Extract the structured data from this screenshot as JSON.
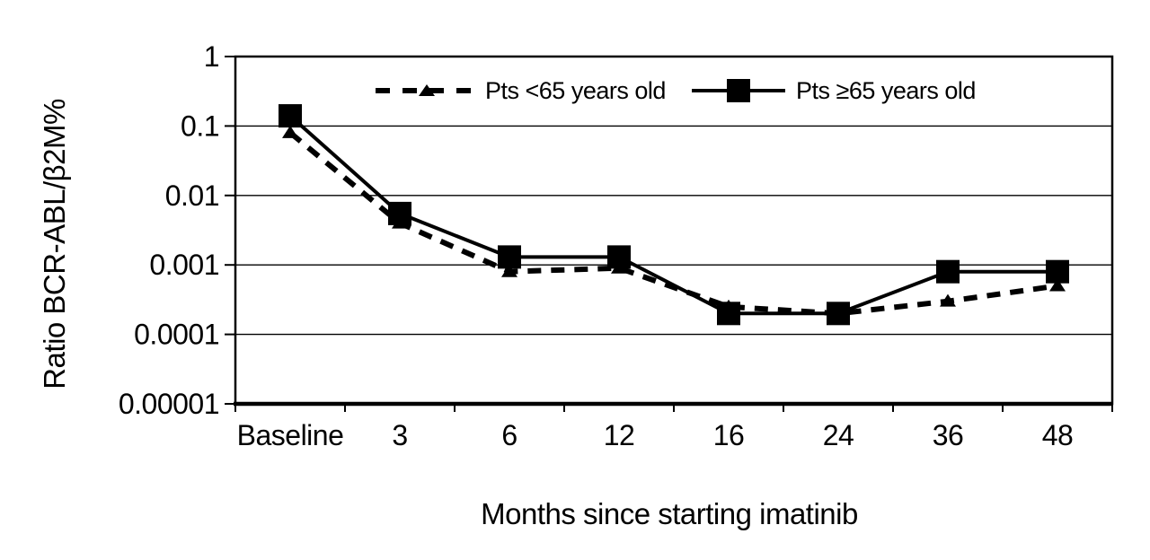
{
  "colors": {
    "foreground": "#000000",
    "background": "#ffffff"
  },
  "chart_data": {
    "type": "line",
    "title": "",
    "xlabel": "Months since starting imatinib",
    "ylabel": "Ratio BCR-ABL/β2M%",
    "categories": [
      "Baseline",
      "3",
      "6",
      "12",
      "16",
      "24",
      "36",
      "48"
    ],
    "y_scale": "log",
    "ylim": [
      1e-05,
      1
    ],
    "y_ticks": [
      "1",
      "0.1",
      "0.01",
      "0.001",
      "0.0001",
      "0.00001"
    ],
    "y_tick_values": [
      1,
      0.1,
      0.01,
      0.001,
      0.0001,
      1e-05
    ],
    "grid": "horizontal-gridlines-per-decade",
    "legend_position": "top-inside",
    "series": [
      {
        "name": "Pts <65 years old",
        "line_style": "dashed",
        "marker": "triangle",
        "color": "#000000",
        "values": [
          0.08,
          0.004,
          0.0008,
          0.0009,
          0.00025,
          0.0002,
          0.0003,
          0.0005
        ]
      },
      {
        "name": "Pts ≥65 years old",
        "line_style": "solid",
        "marker": "square",
        "color": "#000000",
        "values": [
          0.14,
          0.0055,
          0.0013,
          0.0013,
          0.0002,
          0.0002,
          0.0008,
          0.0008
        ]
      }
    ]
  }
}
